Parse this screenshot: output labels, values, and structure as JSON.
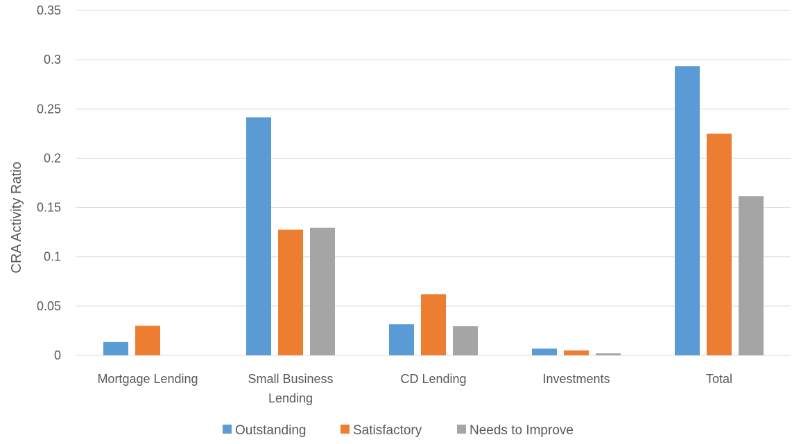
{
  "chart_data": {
    "type": "bar",
    "categories": [
      [
        "Mortgage Lending"
      ],
      [
        "Small Business",
        "Lending"
      ],
      [
        "CD Lending"
      ],
      [
        "Investments"
      ],
      [
        "Total"
      ]
    ],
    "series": [
      {
        "name": "Outstanding",
        "color": "#5b9bd5",
        "values": [
          0.0135,
          0.2415,
          0.0315,
          0.0068,
          0.2935
        ]
      },
      {
        "name": "Satisfactory",
        "color": "#ed7d31",
        "values": [
          0.03,
          0.1275,
          0.062,
          0.005,
          0.225
        ]
      },
      {
        "name": "Needs to Improve",
        "color": "#a5a5a5",
        "values": [
          0.0,
          0.1295,
          0.0295,
          0.002,
          0.1615
        ]
      }
    ],
    "title": "",
    "xlabel": "",
    "ylabel": "CRA Activity Ratio",
    "ylim": [
      0,
      0.35
    ],
    "yticks": [
      "0",
      "0.05",
      "0.1",
      "0.15",
      "0.2",
      "0.25",
      "0.3",
      "0.35"
    ],
    "grid": true,
    "legend_position": "bottom"
  }
}
